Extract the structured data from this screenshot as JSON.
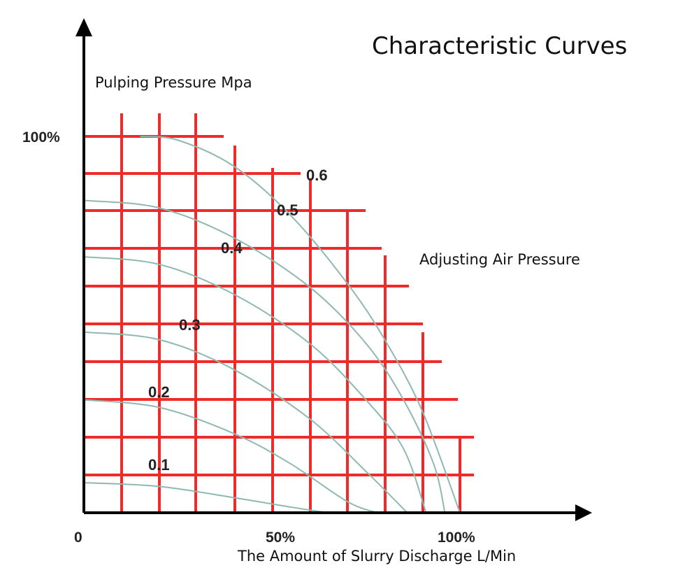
{
  "chart_data": {
    "type": "line",
    "title": "Characteristic Curves",
    "ylabel": "Pulping Pressure Mpa",
    "xlabel": "The Amount of Slurry Discharge  L/Min",
    "annotation": "Adjusting Air Pressure",
    "x_ticks": [
      {
        "label": "0",
        "value": 0
      },
      {
        "label": "50%",
        "value": 50
      },
      {
        "label": "100%",
        "value": 100
      }
    ],
    "y_ticks": [
      {
        "label": "100%",
        "value": 100
      }
    ],
    "xlim": [
      0,
      130
    ],
    "ylim": [
      0,
      120
    ],
    "grid": true,
    "series": [
      {
        "label": "0.1",
        "x": [
          0,
          20,
          40,
          55,
          65
        ],
        "y": [
          8,
          7,
          4,
          1.5,
          0
        ]
      },
      {
        "label": "0.2",
        "x": [
          0,
          20,
          40,
          55,
          70,
          78
        ],
        "y": [
          30,
          28,
          21,
          13,
          3,
          0
        ]
      },
      {
        "label": "0.3",
        "x": [
          0,
          20,
          40,
          60,
          75,
          86
        ],
        "y": [
          48,
          46,
          38,
          25,
          11,
          0
        ]
      },
      {
        "label": "0.4",
        "x": [
          0,
          20,
          40,
          60,
          75,
          85,
          91
        ],
        "y": [
          68,
          66,
          58,
          45,
          30,
          17,
          0
        ]
      },
      {
        "label": "0.5",
        "x": [
          0,
          20,
          40,
          60,
          75,
          85,
          93,
          96
        ],
        "y": [
          83,
          81,
          73,
          60,
          45,
          30,
          13,
          0
        ]
      },
      {
        "label": "0.6",
        "x": [
          15,
          25,
          40,
          55,
          70,
          80,
          90,
          100
        ],
        "y": [
          100,
          99,
          92,
          79,
          61,
          46,
          27,
          0
        ]
      }
    ]
  }
}
